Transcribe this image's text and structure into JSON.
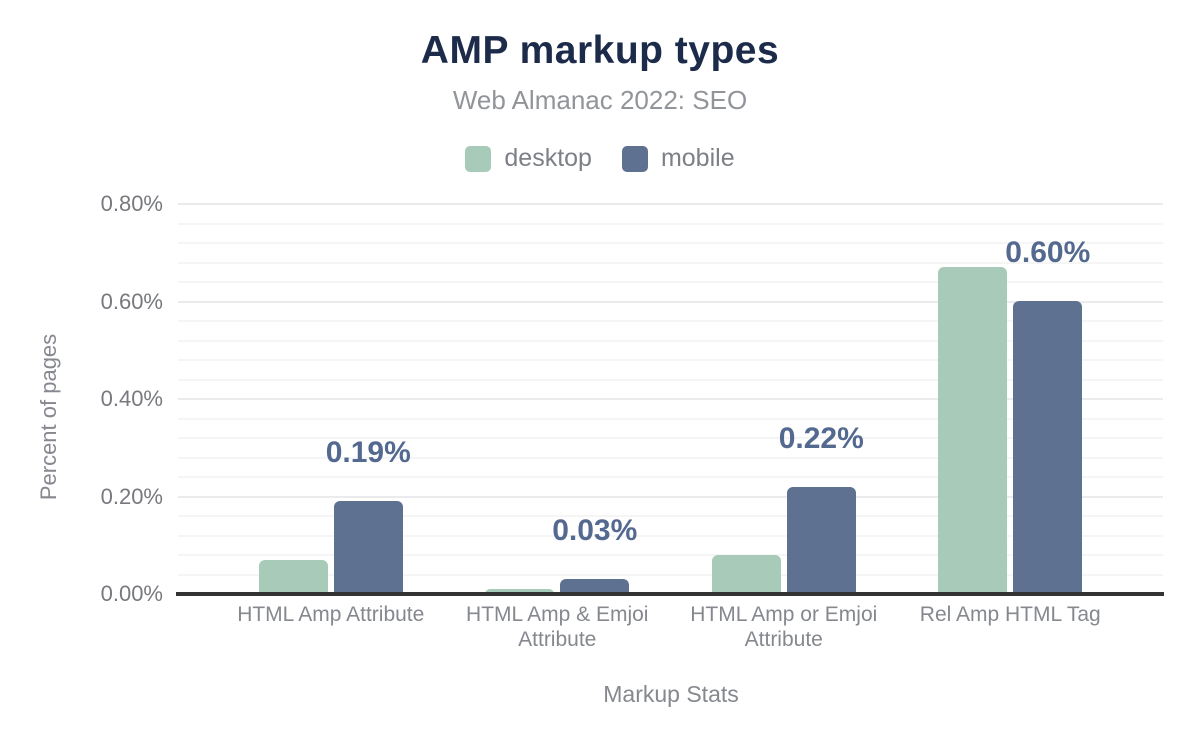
{
  "colors": {
    "background": "#ffffff",
    "title": "#1c2b49",
    "subtitle": "#919499",
    "axis_text": "#85888e",
    "tick_text": "#77797f",
    "value_label": "#54698f",
    "axis_line": "#333333",
    "grid_minor": "#f5f5f6",
    "grid_major": "#ebebed",
    "desktop": "#a7cab9",
    "mobile": "#5f7190"
  },
  "chart_data": {
    "type": "bar",
    "title": "AMP markup types",
    "subtitle": "Web Almanac 2022: SEO",
    "xlabel": "Markup Stats",
    "ylabel": "Percent of pages",
    "categories": [
      "HTML Amp Attribute",
      "HTML Amp & Emjoi Attribute",
      "HTML Amp or Emjoi Attribute",
      "Rel Amp HTML Tag"
    ],
    "series": [
      {
        "name": "desktop",
        "color": "#a7cab9",
        "values": [
          0.07,
          0.01,
          0.08,
          0.67
        ]
      },
      {
        "name": "mobile",
        "color": "#5f7190",
        "values": [
          0.19,
          0.03,
          0.22,
          0.6
        ]
      }
    ],
    "value_labels": {
      "series": "mobile",
      "texts": [
        "0.19%",
        "0.03%",
        "0.22%",
        "0.60%"
      ]
    },
    "yticks": [
      {
        "value": 0.0,
        "label": "0.00%"
      },
      {
        "value": 0.2,
        "label": "0.20%"
      },
      {
        "value": 0.4,
        "label": "0.40%"
      },
      {
        "value": 0.6,
        "label": "0.60%"
      },
      {
        "value": 0.8,
        "label": "0.80%"
      }
    ],
    "ylim": [
      0,
      0.8
    ],
    "unit": "%",
    "grid": {
      "show": true,
      "minor_step": 0.04,
      "major_step": 0.2
    },
    "legend_position": "top"
  }
}
